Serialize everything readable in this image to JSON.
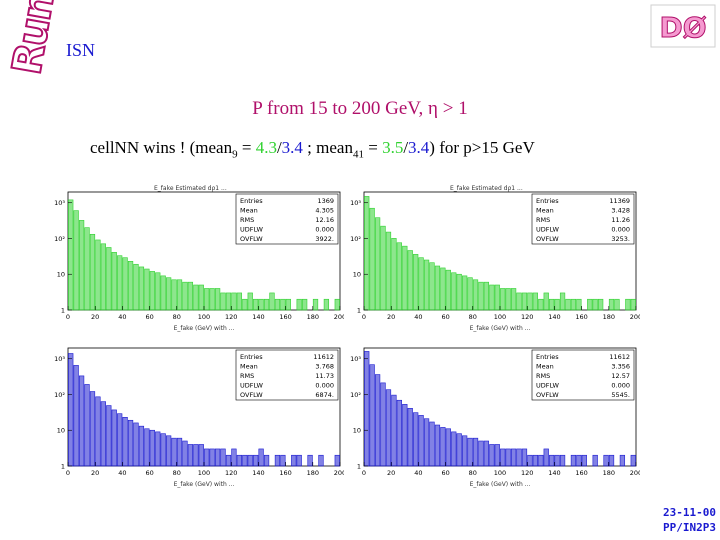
{
  "header": {
    "logo_text": "Run II",
    "subheading": "ISN",
    "do_logo_text": "DØ"
  },
  "title": "P from 15 to 200 GeV, η  > 1",
  "subtitle": {
    "prefix": "cellNN wins ! (mean",
    "sub1": "9",
    "eq1": " = ",
    "v1a": "4.3",
    "slash1": "/",
    "v1b": "3.4",
    "mid": " ; mean",
    "sub2": "41",
    "eq2": " = ",
    "v2a": "3.5",
    "slash2": "/",
    "v2b": "3.4",
    "suffix": ") for p>15 GeV"
  },
  "footer": {
    "date": "23-11-00",
    "code": "PP/IN2P3"
  },
  "colors": {
    "green": "#2fd22f",
    "blue": "#1a1ad0",
    "magenta": "#b0106a"
  },
  "chart_data": [
    {
      "type": "bar",
      "title": "E_fake Estimated dρ1 ...",
      "xlabel": "E_fake (GeV) with ...",
      "color": "green",
      "x_ticks": [
        "0",
        "20",
        "40",
        "60",
        "80",
        "100",
        "120",
        "140",
        "160",
        "180",
        "200"
      ],
      "y_ticks": [
        "10³",
        "10²",
        "10",
        "1"
      ],
      "ylim_log10": [
        0,
        3.3
      ],
      "xlim": [
        0,
        200
      ],
      "stats": {
        "labels": [
          "Entries",
          "Mean",
          "RMS",
          "UDFLW",
          "OVFLW"
        ],
        "values": [
          "1369",
          "4.305",
          "12.16",
          "0.000",
          "3922."
        ]
      },
      "values": [
        1200,
        600,
        320,
        200,
        130,
        90,
        70,
        55,
        40,
        32,
        28,
        22,
        18,
        15,
        13,
        11,
        10,
        8,
        7,
        6,
        6,
        5,
        5,
        4,
        4,
        3,
        3,
        3,
        2,
        2,
        2,
        2,
        1,
        2,
        1,
        1,
        1,
        2,
        1,
        1,
        1,
        0,
        1,
        1,
        0,
        1,
        0,
        1,
        0,
        1
      ]
    },
    {
      "type": "bar",
      "title": "E_fake Estimated dρ1 ...",
      "xlabel": "E_fake (GeV) with ...",
      "color": "green",
      "x_ticks": [
        "0",
        "20",
        "40",
        "60",
        "80",
        "100",
        "120",
        "140",
        "160",
        "180",
        "200"
      ],
      "y_ticks": [
        "10³",
        "10²",
        "10",
        "1"
      ],
      "ylim_log10": [
        0,
        3.3
      ],
      "xlim": [
        0,
        200
      ],
      "stats": {
        "labels": [
          "Entries",
          "Mean",
          "RMS",
          "UDFLW",
          "OVFLW"
        ],
        "values": [
          "11369",
          "3.428",
          "11.26",
          "0.000",
          "3253."
        ]
      },
      "values": [
        1500,
        700,
        380,
        220,
        150,
        100,
        75,
        60,
        45,
        35,
        28,
        24,
        20,
        16,
        14,
        12,
        10,
        9,
        8,
        7,
        6,
        5,
        5,
        4,
        4,
        3,
        3,
        3,
        2,
        2,
        2,
        2,
        1,
        2,
        1,
        1,
        2,
        1,
        1,
        1,
        0,
        1,
        1,
        1,
        0,
        1,
        1,
        0,
        1,
        1
      ]
    },
    {
      "type": "bar",
      "title": "",
      "xlabel": "E_fake (GeV) with ...",
      "color": "blue",
      "x_ticks": [
        "0",
        "20",
        "40",
        "60",
        "80",
        "100",
        "120",
        "140",
        "160",
        "180",
        "200"
      ],
      "y_ticks": [
        "10³",
        "10²",
        "10",
        "1"
      ],
      "ylim_log10": [
        0,
        3.3
      ],
      "xlim": [
        0,
        200
      ],
      "stats": {
        "labels": [
          "Entries",
          "Mean",
          "RMS",
          "UDFLW",
          "OVFLW"
        ],
        "values": [
          "11612",
          "3.768",
          "11.73",
          "0.000",
          "6874."
        ]
      },
      "values": [
        1400,
        650,
        330,
        190,
        120,
        85,
        62,
        48,
        36,
        28,
        22,
        18,
        15,
        12,
        10,
        9,
        8,
        7,
        6,
        5,
        5,
        4,
        3,
        3,
        3,
        2,
        2,
        2,
        2,
        1,
        2,
        1,
        1,
        1,
        1,
        2,
        1,
        0,
        1,
        1,
        0,
        1,
        1,
        0,
        1,
        0,
        1,
        0,
        0,
        1
      ]
    },
    {
      "type": "bar",
      "title": "",
      "xlabel": "E_fake (GeV) with ...",
      "color": "blue",
      "x_ticks": [
        "0",
        "20",
        "40",
        "60",
        "80",
        "100",
        "120",
        "140",
        "160",
        "180",
        "200"
      ],
      "y_ticks": [
        "10³",
        "10²",
        "10",
        "1"
      ],
      "ylim_log10": [
        0,
        3.3
      ],
      "xlim": [
        0,
        200
      ],
      "stats": {
        "labels": [
          "Entries",
          "Mean",
          "RMS",
          "UDFLW",
          "OVFLW"
        ],
        "values": [
          "11612",
          "3.356",
          "12.57",
          "0.000",
          "5545."
        ]
      },
      "values": [
        1600,
        680,
        360,
        210,
        135,
        95,
        68,
        52,
        40,
        30,
        25,
        20,
        16,
        13,
        11,
        10,
        8,
        7,
        6,
        5,
        5,
        4,
        4,
        3,
        3,
        2,
        2,
        2,
        2,
        2,
        1,
        1,
        1,
        2,
        1,
        1,
        1,
        0,
        1,
        1,
        1,
        0,
        1,
        0,
        1,
        1,
        0,
        1,
        0,
        1
      ]
    }
  ]
}
